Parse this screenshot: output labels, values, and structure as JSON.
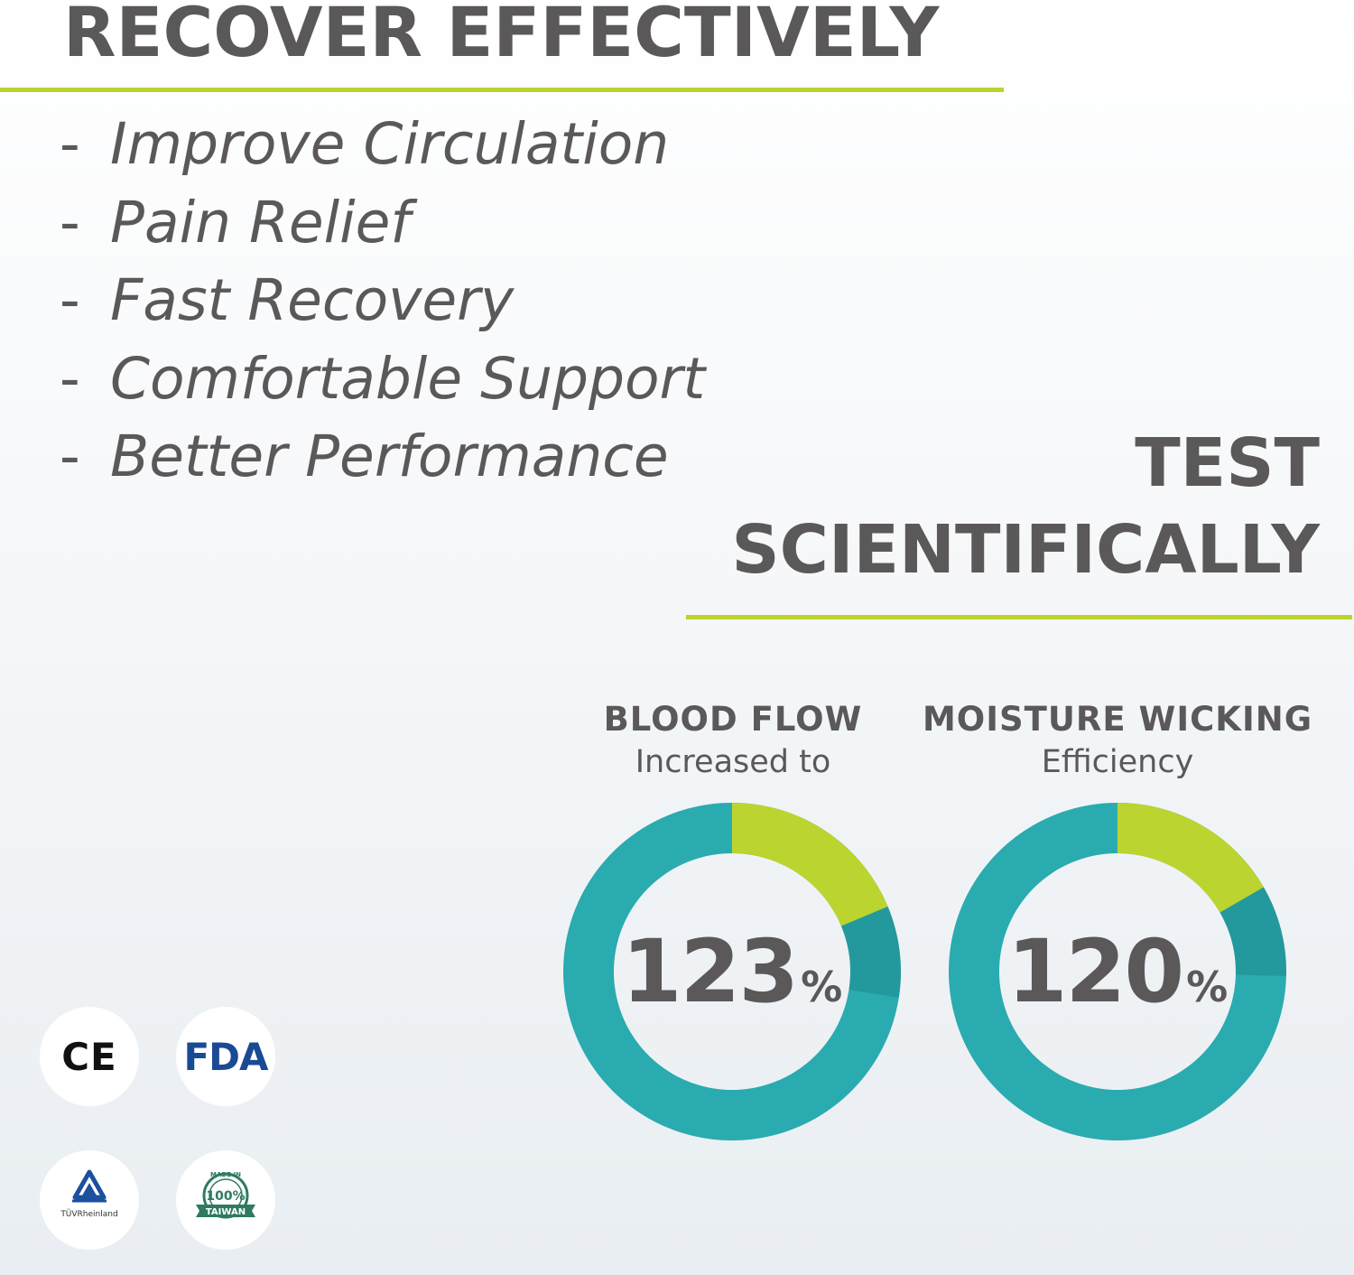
{
  "recover": {
    "title": "RECOVER EFFECTIVELY",
    "bullet": "-",
    "benefits": [
      "Improve Circulation",
      "Pain Relief",
      "Fast Recovery",
      "Comfortable Support",
      "Better Performance"
    ]
  },
  "test": {
    "title": "TEST SCIENTIFICALLY"
  },
  "stats": [
    {
      "title": "BLOOD FLOW",
      "subtitle": "Increased to",
      "value": "123",
      "unit": "%"
    },
    {
      "title": "MOISTURE WICKING",
      "subtitle": "Efficiency",
      "value": "120",
      "unit": "%"
    }
  ],
  "chart_data": [
    {
      "type": "pie",
      "categories": [
        "base",
        "increase"
      ],
      "values": [
        100,
        23
      ],
      "colors": [
        "#2aabb0",
        "#bcd42f"
      ],
      "center_label": "123%"
    },
    {
      "type": "pie",
      "categories": [
        "base",
        "increase"
      ],
      "values": [
        100,
        20
      ],
      "colors": [
        "#2aabb0",
        "#bcd42f"
      ],
      "center_label": "120%"
    }
  ],
  "badges": {
    "ce": "CE",
    "fda": "FDA",
    "tuv": "TÜVRheinland",
    "taiwan_top": "MADE IN",
    "taiwan_mid": "100%",
    "taiwan_banner": "TAIWAN"
  },
  "colors": {
    "text": "#5b5859",
    "accent_green": "#bdd22e",
    "teal": "#2aabb0",
    "teal_dark": "#1d8a8e",
    "fda_blue": "#1a4a93",
    "taiwan_green": "#2e7a63"
  }
}
